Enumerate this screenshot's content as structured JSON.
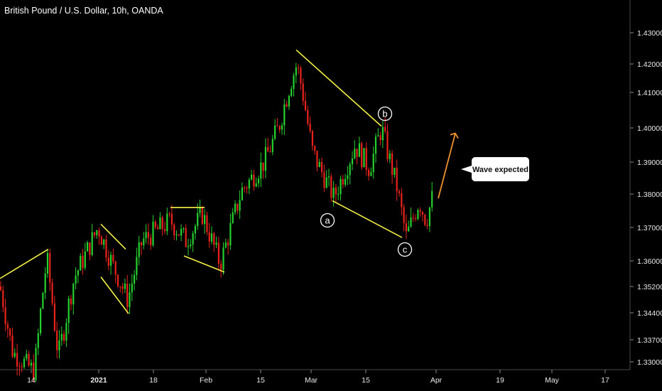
{
  "header": {
    "title": "British Pound / U.S. Dollar, 10h, OANDA"
  },
  "chart_data": {
    "type": "candlestick",
    "symbol": "British Pound / U.S. Dollar",
    "timeframe": "10h",
    "source": "OANDA",
    "y_axis": {
      "ticks": [
        "1.43000",
        "1.42000",
        "1.41000",
        "1.40000",
        "1.39000",
        "1.38000",
        "1.37000",
        "1.36000",
        "1.35200",
        "1.34400",
        "1.33700",
        "1.33000"
      ],
      "range": [
        1.328,
        1.436
      ]
    },
    "x_axis": {
      "ticks": [
        "14",
        "2021",
        "18",
        "Feb",
        "15",
        "Mar",
        "15",
        "Apr",
        "19",
        "May",
        "17"
      ],
      "bold_ticks": [
        "2021"
      ]
    },
    "colors": {
      "up": "#26d12f",
      "down": "#e8231b",
      "pattern_lines": "#f5f044",
      "projection": "#f0922e",
      "background": "#000000",
      "axis_text": "#e8e8e8"
    },
    "wave_labels": [
      "a",
      "b",
      "c"
    ],
    "callout": "Wave expected",
    "key_prices": {
      "start": 1.352,
      "jan_high": 1.37,
      "feb_high": 1.376,
      "feb_low": 1.357,
      "top": 1.424,
      "wave_a_low": 1.378,
      "wave_b_high": 1.4,
      "wave_c_low": 1.367,
      "last": 1.38,
      "projection_target": 1.398
    }
  }
}
